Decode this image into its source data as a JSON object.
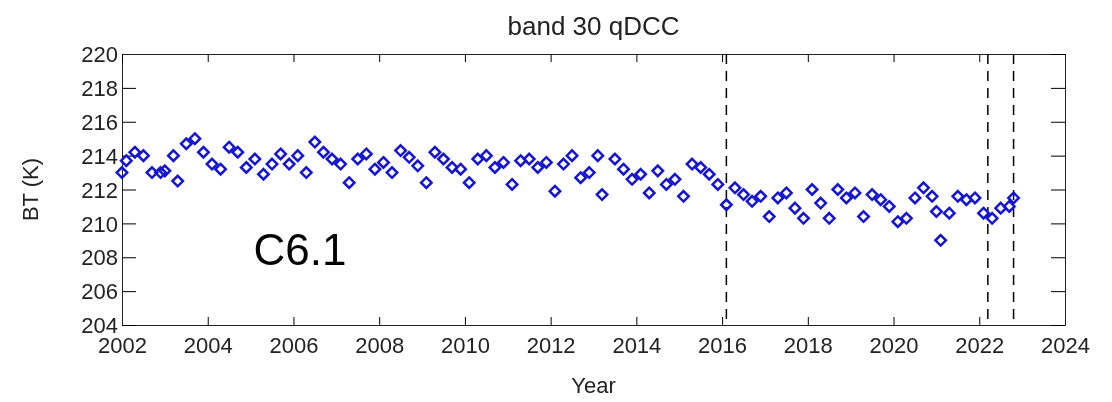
{
  "chart_data": {
    "type": "scatter",
    "title": "band 30 qDCC",
    "xlabel": "Year",
    "ylabel": "BT (K)",
    "annotations": [
      "C6.1"
    ],
    "marker": "diamond",
    "grid": false,
    "xlim": [
      2002,
      2024
    ],
    "xticks": [
      2002,
      2004,
      2006,
      2008,
      2010,
      2012,
      2014,
      2016,
      2018,
      2020,
      2022,
      2024
    ],
    "ylim": [
      204,
      220
    ],
    "yticks": [
      204,
      206,
      208,
      210,
      212,
      214,
      216,
      218,
      220
    ],
    "ref_lines": [
      {
        "axis": "x",
        "value": 2016.1,
        "color": "#000000",
        "line_style": "dashed"
      },
      {
        "axis": "x",
        "value": 2022.2,
        "color": "#000000",
        "line_style": "dashed"
      },
      {
        "axis": "x",
        "value": 2022.8,
        "color": "#000000",
        "line_style": "dashed"
      }
    ],
    "series": [
      {
        "color": "#1414d2",
        "x": [
          2002.0,
          2002.1,
          2002.3,
          2002.5,
          2002.7,
          2002.9,
          2003.0,
          2003.2,
          2003.3,
          2003.5,
          2003.7,
          2003.9,
          2004.1,
          2004.3,
          2004.5,
          2004.7,
          2004.9,
          2005.1,
          2005.3,
          2005.5,
          2005.7,
          2005.9,
          2006.1,
          2006.3,
          2006.5,
          2006.7,
          2006.9,
          2007.1,
          2007.3,
          2007.5,
          2007.7,
          2007.9,
          2008.1,
          2008.3,
          2008.5,
          2008.7,
          2008.9,
          2009.1,
          2009.3,
          2009.5,
          2009.7,
          2009.9,
          2010.1,
          2010.3,
          2010.5,
          2010.7,
          2010.9,
          2011.1,
          2011.3,
          2011.5,
          2011.7,
          2011.9,
          2012.1,
          2012.3,
          2012.5,
          2012.7,
          2012.9,
          2013.1,
          2013.2,
          2013.5,
          2013.7,
          2013.9,
          2014.1,
          2014.3,
          2014.5,
          2014.7,
          2014.9,
          2015.1,
          2015.3,
          2015.5,
          2015.7,
          2015.9,
          2016.1,
          2016.3,
          2016.5,
          2016.7,
          2016.9,
          2017.1,
          2017.3,
          2017.5,
          2017.7,
          2017.9,
          2018.1,
          2018.3,
          2018.5,
          2018.7,
          2018.9,
          2019.1,
          2019.3,
          2019.5,
          2019.7,
          2019.9,
          2020.1,
          2020.3,
          2020.5,
          2020.7,
          2020.9,
          2021.0,
          2021.1,
          2021.3,
          2021.5,
          2021.7,
          2021.9,
          2022.1,
          2022.3,
          2022.5,
          2022.7,
          2022.8
        ],
        "values": [
          213.0,
          213.7,
          214.2,
          214.0,
          213.0,
          213.0,
          213.1,
          214.0,
          212.5,
          214.7,
          215.0,
          214.2,
          213.5,
          213.2,
          214.5,
          214.2,
          213.3,
          213.8,
          212.9,
          213.5,
          214.1,
          213.5,
          214.0,
          213.0,
          214.8,
          214.2,
          213.8,
          213.5,
          212.4,
          213.8,
          214.1,
          213.2,
          213.6,
          213.0,
          214.3,
          213.9,
          213.4,
          212.4,
          214.2,
          213.8,
          213.3,
          213.2,
          212.4,
          213.8,
          214.0,
          213.3,
          213.6,
          212.3,
          213.7,
          213.8,
          213.3,
          213.6,
          211.9,
          213.5,
          214.0,
          212.7,
          213.0,
          214.0,
          211.7,
          213.8,
          213.2,
          212.6,
          212.9,
          211.8,
          213.1,
          212.3,
          212.6,
          211.6,
          213.5,
          213.3,
          212.9,
          212.3,
          211.1,
          212.1,
          211.7,
          211.3,
          211.6,
          210.4,
          211.5,
          211.8,
          210.9,
          210.3,
          212.0,
          211.2,
          210.3,
          212.0,
          211.5,
          211.8,
          210.4,
          211.7,
          211.4,
          211.0,
          210.1,
          210.3,
          211.5,
          212.1,
          211.6,
          210.7,
          209.0,
          210.6,
          211.6,
          211.4,
          211.5,
          210.6,
          210.3,
          210.9,
          211.0,
          211.5
        ]
      }
    ]
  }
}
